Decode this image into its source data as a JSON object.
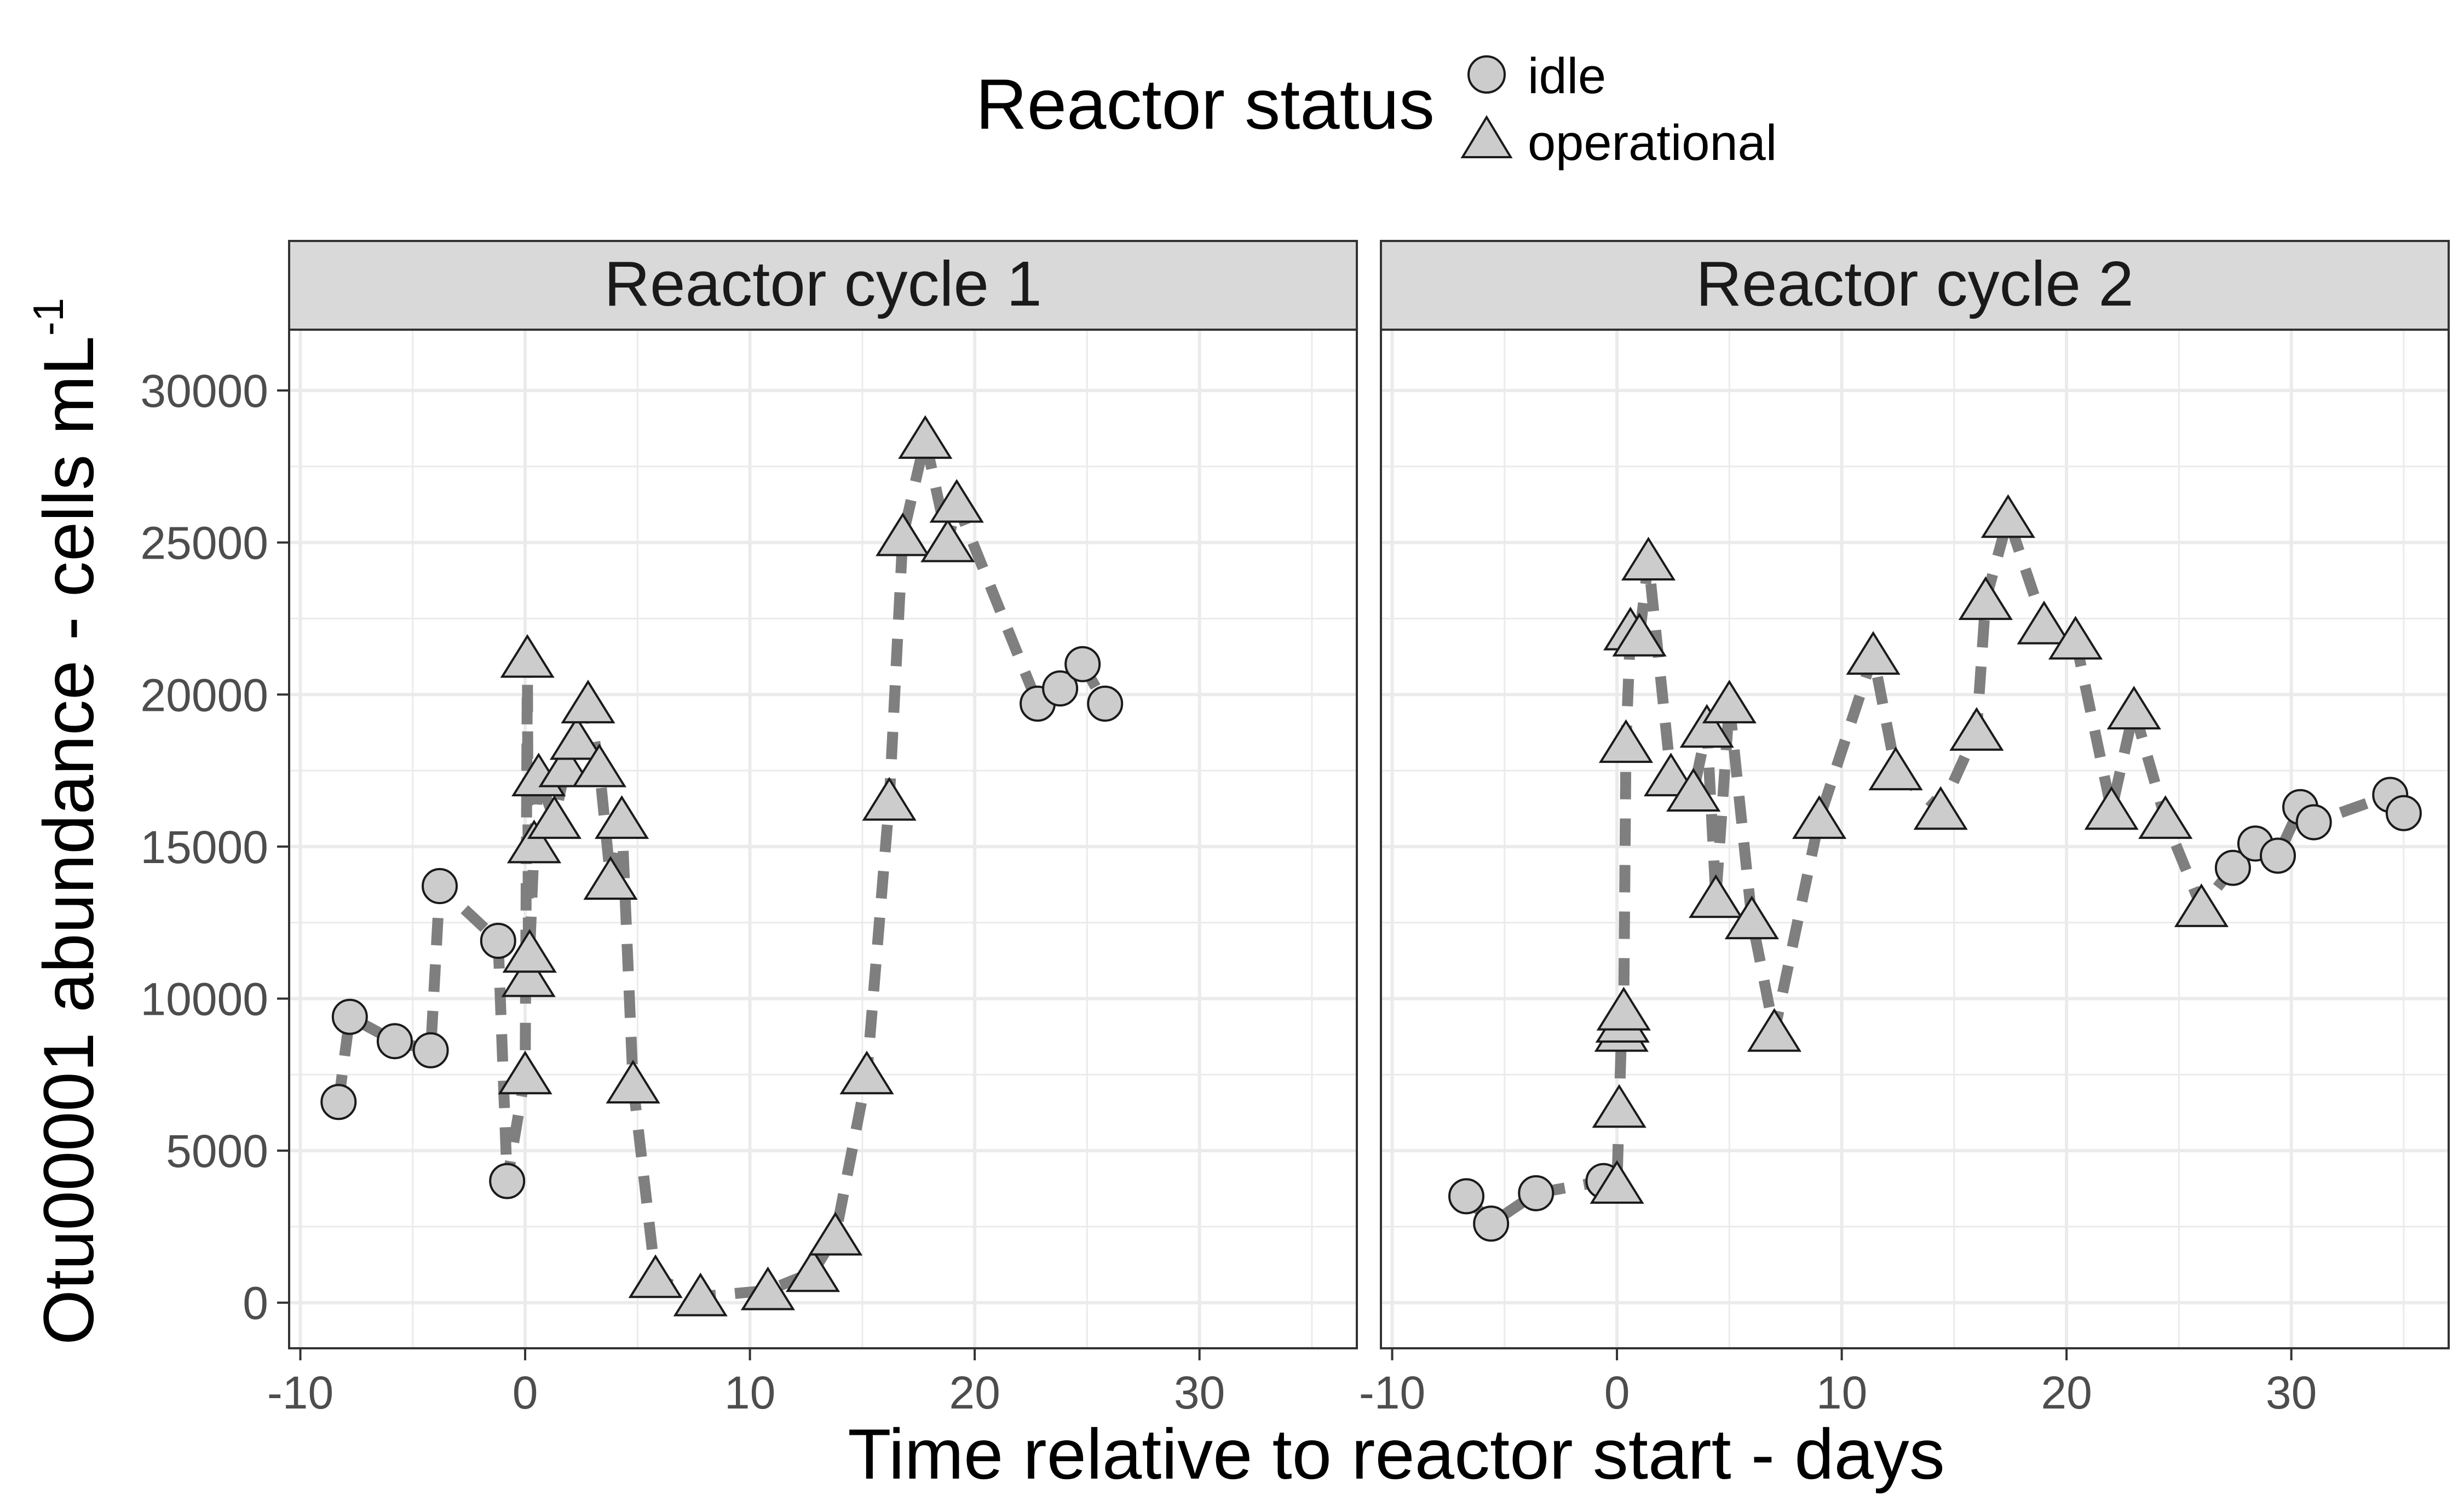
{
  "legend": {
    "title": "Reactor status",
    "entries": [
      {
        "label": "idle",
        "shape": "circle"
      },
      {
        "label": "operational",
        "shape": "triangle"
      }
    ]
  },
  "axes": {
    "xlabel": "Time relative to reactor start - days",
    "ylabel_main": "Otu00001 abundance - cells mL",
    "ylabel_sup": "-1",
    "xlim": [
      -10.5,
      37
    ],
    "ylim": [
      -1500,
      32000
    ],
    "xticks": [
      -10,
      0,
      10,
      20,
      30
    ],
    "yticks": [
      0,
      5000,
      10000,
      15000,
      20000,
      25000,
      30000
    ]
  },
  "colors": {
    "point_fill": "#cccccc",
    "point_stroke": "#1a1a1a",
    "line": "#7f7f7f",
    "strip_fill": "#d9d9d9",
    "grid": "#ebebeb",
    "panel_border": "#333333",
    "text": "#000000",
    "tick_text": "#4d4d4d"
  },
  "chart_data": [
    {
      "type": "line",
      "title": "Reactor cycle 1",
      "series": [
        {
          "points": [
            {
              "x": -8.3,
              "y": 6600,
              "status": "idle"
            },
            {
              "x": -7.8,
              "y": 9400,
              "status": "idle"
            },
            {
              "x": -5.8,
              "y": 8600,
              "status": "idle"
            },
            {
              "x": -4.2,
              "y": 8300,
              "status": "idle"
            },
            {
              "x": -3.8,
              "y": 13700,
              "status": "idle"
            },
            {
              "x": -1.2,
              "y": 11900,
              "status": "idle"
            },
            {
              "x": -0.8,
              "y": 4000,
              "status": "idle"
            },
            {
              "x": 0.0,
              "y": 7500,
              "status": "operational"
            },
            {
              "x": 0.1,
              "y": 21200,
              "status": "operational"
            },
            {
              "x": 0.15,
              "y": 10700,
              "status": "operational"
            },
            {
              "x": 0.2,
              "y": 11500,
              "status": "operational"
            },
            {
              "x": 0.4,
              "y": 15100,
              "status": "operational"
            },
            {
              "x": 0.6,
              "y": 17300,
              "status": "operational"
            },
            {
              "x": 1.3,
              "y": 15900,
              "status": "operational"
            },
            {
              "x": 1.8,
              "y": 17600,
              "status": "operational"
            },
            {
              "x": 2.3,
              "y": 18500,
              "status": "operational"
            },
            {
              "x": 2.8,
              "y": 19700,
              "status": "operational"
            },
            {
              "x": 3.3,
              "y": 17600,
              "status": "operational"
            },
            {
              "x": 3.8,
              "y": 13900,
              "status": "operational"
            },
            {
              "x": 4.3,
              "y": 15900,
              "status": "operational"
            },
            {
              "x": 4.8,
              "y": 7200,
              "status": "operational"
            },
            {
              "x": 5.8,
              "y": 800,
              "status": "operational"
            },
            {
              "x": 7.8,
              "y": 200,
              "status": "operational"
            },
            {
              "x": 10.8,
              "y": 400,
              "status": "operational"
            },
            {
              "x": 12.8,
              "y": 1000,
              "status": "operational"
            },
            {
              "x": 13.8,
              "y": 2200,
              "status": "operational"
            },
            {
              "x": 15.2,
              "y": 7500,
              "status": "operational"
            },
            {
              "x": 16.2,
              "y": 16500,
              "status": "operational"
            },
            {
              "x": 16.8,
              "y": 25200,
              "status": "operational"
            },
            {
              "x": 17.8,
              "y": 28400,
              "status": "operational"
            },
            {
              "x": 18.8,
              "y": 25000,
              "status": "operational"
            },
            {
              "x": 19.2,
              "y": 26300,
              "status": "operational"
            },
            {
              "x": 22.8,
              "y": 19700,
              "status": "idle"
            },
            {
              "x": 23.8,
              "y": 20200,
              "status": "idle"
            },
            {
              "x": 24.8,
              "y": 21000,
              "status": "idle"
            },
            {
              "x": 25.8,
              "y": 19700,
              "status": "idle"
            }
          ]
        }
      ]
    },
    {
      "type": "line",
      "title": "Reactor cycle 2",
      "series": [
        {
          "points": [
            {
              "x": -6.7,
              "y": 3500,
              "status": "idle"
            },
            {
              "x": -5.6,
              "y": 2600,
              "status": "idle"
            },
            {
              "x": -3.6,
              "y": 3600,
              "status": "idle"
            },
            {
              "x": -0.6,
              "y": 4000,
              "status": "idle"
            },
            {
              "x": 0.0,
              "y": 3900,
              "status": "operational"
            },
            {
              "x": 0.1,
              "y": 6400,
              "status": "operational"
            },
            {
              "x": 0.2,
              "y": 8900,
              "status": "operational"
            },
            {
              "x": 0.25,
              "y": 9200,
              "status": "operational"
            },
            {
              "x": 0.3,
              "y": 9600,
              "status": "operational"
            },
            {
              "x": 0.4,
              "y": 18400,
              "status": "operational"
            },
            {
              "x": 0.6,
              "y": 22100,
              "status": "operational"
            },
            {
              "x": 1.0,
              "y": 21900,
              "status": "operational"
            },
            {
              "x": 1.4,
              "y": 24400,
              "status": "operational"
            },
            {
              "x": 2.4,
              "y": 17300,
              "status": "operational"
            },
            {
              "x": 3.4,
              "y": 16800,
              "status": "operational"
            },
            {
              "x": 4.0,
              "y": 18900,
              "status": "operational"
            },
            {
              "x": 4.4,
              "y": 13300,
              "status": "operational"
            },
            {
              "x": 5.0,
              "y": 19700,
              "status": "operational"
            },
            {
              "x": 6.0,
              "y": 12600,
              "status": "operational"
            },
            {
              "x": 7.0,
              "y": 8900,
              "status": "operational"
            },
            {
              "x": 9.0,
              "y": 15900,
              "status": "operational"
            },
            {
              "x": 11.4,
              "y": 21300,
              "status": "operational"
            },
            {
              "x": 12.4,
              "y": 17500,
              "status": "operational"
            },
            {
              "x": 14.4,
              "y": 16200,
              "status": "operational"
            },
            {
              "x": 16.0,
              "y": 18800,
              "status": "operational"
            },
            {
              "x": 16.4,
              "y": 23100,
              "status": "operational"
            },
            {
              "x": 17.4,
              "y": 25800,
              "status": "operational"
            },
            {
              "x": 19.0,
              "y": 22300,
              "status": "operational"
            },
            {
              "x": 20.4,
              "y": 21800,
              "status": "operational"
            },
            {
              "x": 22.0,
              "y": 16200,
              "status": "operational"
            },
            {
              "x": 23.0,
              "y": 19500,
              "status": "operational"
            },
            {
              "x": 24.4,
              "y": 15900,
              "status": "operational"
            },
            {
              "x": 26.0,
              "y": 13000,
              "status": "operational"
            },
            {
              "x": 27.4,
              "y": 14300,
              "status": "idle"
            },
            {
              "x": 28.4,
              "y": 15100,
              "status": "idle"
            },
            {
              "x": 29.4,
              "y": 14700,
              "status": "idle"
            },
            {
              "x": 30.4,
              "y": 16300,
              "status": "idle"
            },
            {
              "x": 31.0,
              "y": 15800,
              "status": "idle"
            },
            {
              "x": 34.4,
              "y": 16700,
              "status": "idle"
            },
            {
              "x": 35.0,
              "y": 16100,
              "status": "idle"
            }
          ]
        }
      ]
    }
  ]
}
